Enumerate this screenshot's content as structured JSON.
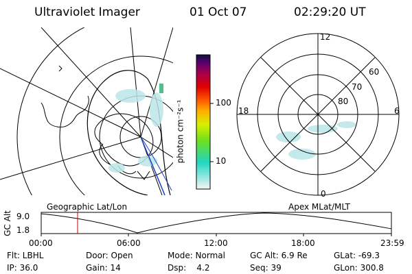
{
  "header": {
    "instrument": "Ultraviolet Imager",
    "date": "01 Oct 07",
    "time": "02:29:20 UT"
  },
  "colorbar": {
    "label": "photon cm⁻²s⁻¹",
    "ticks": [
      "100",
      "10"
    ]
  },
  "polar": {
    "mlt_labels": {
      "top": "12",
      "left": "18",
      "right": "6",
      "bottom": "0"
    },
    "lat_labels": [
      "60",
      "70",
      "80"
    ]
  },
  "timeline": {
    "axis_label": "GC Alt",
    "y_ticks": [
      "9.0",
      "1.8"
    ],
    "left_caption": "Geographic Lat/Lon",
    "right_caption": "Apex MLat/MLT",
    "x_ticks": [
      "00:00",
      "06:00",
      "12:00",
      "18:00",
      "23:59"
    ]
  },
  "info": {
    "row1": {
      "flt": "Flt: LBHL",
      "door": "Door: Open",
      "mode": "Mode: Normal",
      "gcalt": "GC Alt: 6.9 Re",
      "glat": "GLat: -69.3"
    },
    "row2": {
      "ip": "IP: 36.0",
      "gain": "Gain: 14",
      "dsp": "Dsp:    4.2",
      "seq": "Seq: 39",
      "glon": "GLon: 300.8"
    }
  },
  "colors": {
    "orbit_line": "#1a3fbf",
    "time_marker": "#cc0000",
    "aurora": "#7fd3d8"
  }
}
